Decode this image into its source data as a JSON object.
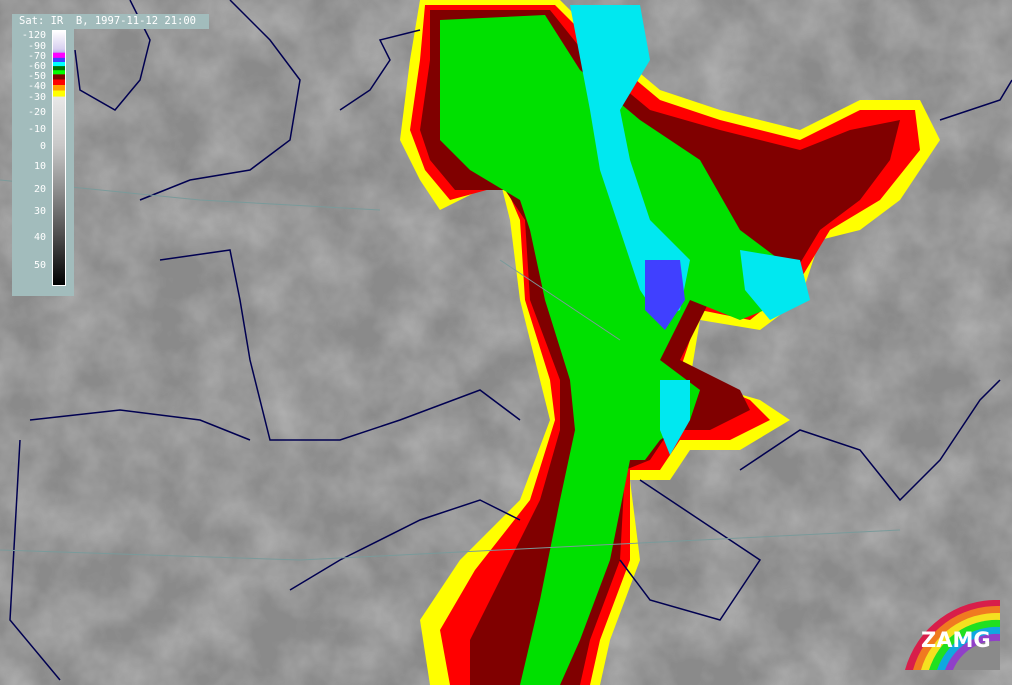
{
  "title": "Sat: IR  B, 1997-11-12 21:00",
  "legend": {
    "labels": [
      "-120",
      "-90",
      "-70",
      "-60",
      "-50",
      "-40",
      "-30",
      "-20",
      "-10",
      "0",
      "10",
      "20",
      "30",
      "40",
      "50"
    ],
    "colors": {
      "-30": "#ffff00",
      "-40": "#ffa000",
      "-45": "#ff0000",
      "-50": "#800000",
      "-55": "#00ff00",
      "-60": "#007000",
      "-65": "#00ffff",
      "-70": "#4040ff",
      "-75": "#ff00ff",
      "-90": "#c0b0f0",
      "-120": "#ffffff"
    }
  },
  "logo": {
    "text": "ZAMG"
  },
  "map": {
    "coastline_color": "#000050",
    "border_color": "#7a9a9a"
  }
}
